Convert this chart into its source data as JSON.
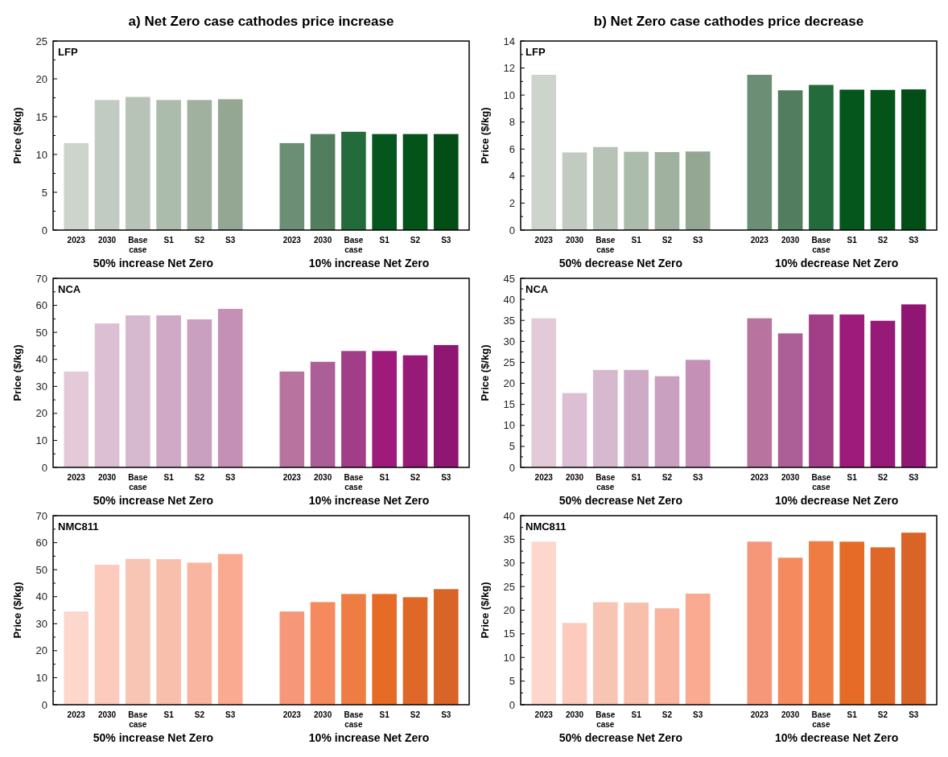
{
  "chart_data": [
    {
      "type": "bar",
      "title": "a) Net Zero case cathodes price increase",
      "subtitle": "LFP",
      "ylabel": "Price ($/kg)",
      "categories": [
        "2023",
        "2030",
        "Base case",
        "S1",
        "S2",
        "S3",
        null,
        "2023",
        "2030",
        "Base case",
        "S1",
        "S2",
        "S3"
      ],
      "values": [
        11.5,
        17.2,
        17.6,
        17.2,
        17.2,
        17.3,
        null,
        11.5,
        12.7,
        13.0,
        12.7,
        12.7,
        12.7
      ],
      "colors": [
        "#ccd4cc",
        "#c2cbc2",
        "#b7c3b7",
        "#acbcac",
        "#a0b1a0",
        "#93a793",
        null,
        "#6b8e74",
        "#527d5e",
        "#246b3c",
        "#04561d",
        "#045419",
        "#034e17"
      ],
      "ylim": [
        0,
        25
      ],
      "yticks": [
        0,
        {
          "value": 2.5,
          "label": null
        },
        5,
        {
          "value": 7.5,
          "label": null
        },
        10,
        {
          "value": 12.5,
          "label": null
        },
        15,
        {
          "value": 17.5,
          "label": null
        },
        20,
        {
          "value": 22.5,
          "label": null
        },
        25
      ],
      "annotations": [
        "50% increase Net Zero",
        "10% increase Net Zero"
      ]
    },
    {
      "type": "bar",
      "title": "b) Net Zero case cathodes price decrease",
      "subtitle": "LFP",
      "ylabel": "Price ($/kg)",
      "categories": [
        "2023",
        "2030",
        "Base case",
        "S1",
        "S2",
        "S3",
        null,
        "2023",
        "2030",
        "Base case",
        "S1",
        "S2",
        "S3"
      ],
      "values": [
        11.5,
        5.75,
        6.15,
        5.8,
        5.78,
        5.82,
        null,
        11.5,
        10.35,
        10.75,
        10.4,
        10.38,
        10.42
      ],
      "colors": [
        "#ccd4cc",
        "#c2cbc2",
        "#b7c3b7",
        "#acbcac",
        "#a0b1a0",
        "#93a793",
        null,
        "#6b8e74",
        "#527d5e",
        "#246b3c",
        "#04561d",
        "#045419",
        "#034e17"
      ],
      "ylim": [
        0,
        14
      ],
      "yticks": [
        0,
        {
          "value": 1,
          "label": null
        },
        2,
        {
          "value": 3,
          "label": null
        },
        4,
        {
          "value": 5,
          "label": null
        },
        6,
        {
          "value": 7,
          "label": null
        },
        8,
        {
          "value": 9,
          "label": null
        },
        10,
        {
          "value": 11,
          "label": null
        },
        12,
        {
          "value": 13,
          "label": null
        },
        14
      ],
      "annotations": [
        "50% decrease Net Zero",
        "10% decrease Net Zero"
      ]
    },
    {
      "type": "bar",
      "subtitle": "NCA",
      "ylabel": "Price ($/kg)",
      "categories": [
        "2023",
        "2030",
        "Base case",
        "S1",
        "S2",
        "S3",
        null,
        "2023",
        "2030",
        "Base case",
        "S1",
        "S2",
        "S3"
      ],
      "values": [
        35.5,
        53.3,
        56.3,
        56.3,
        54.8,
        58.7,
        null,
        35.5,
        39.1,
        43.1,
        43.1,
        41.5,
        45.3
      ],
      "colors": [
        "#e4cad9",
        "#dcbfd3",
        "#d6b8cf",
        "#cfaac6",
        "#c9a0bf",
        "#c590b5",
        null,
        "#b8739f",
        "#ac5f97",
        "#a23e87",
        "#9e1a7b",
        "#971a78",
        "#901674"
      ],
      "ylim": [
        0,
        70
      ],
      "yticks": [
        0,
        {
          "value": 5,
          "label": null
        },
        10,
        {
          "value": 15,
          "label": null
        },
        20,
        {
          "value": 25,
          "label": null
        },
        30,
        {
          "value": 35,
          "label": null
        },
        40,
        {
          "value": 45,
          "label": null
        },
        50,
        {
          "value": 55,
          "label": null
        },
        60,
        {
          "value": 65,
          "label": null
        },
        70
      ],
      "annotations": [
        "50% increase Net Zero",
        "10% increase Net Zero"
      ]
    },
    {
      "type": "bar",
      "subtitle": "NCA",
      "ylabel": "Price ($/kg)",
      "categories": [
        "2023",
        "2030",
        "Base case",
        "S1",
        "S2",
        "S3",
        null,
        "2023",
        "2030",
        "Base case",
        "S1",
        "S2",
        "S3"
      ],
      "values": [
        35.5,
        17.7,
        23.2,
        23.2,
        21.7,
        25.6,
        null,
        35.5,
        31.9,
        36.4,
        36.4,
        34.9,
        38.8
      ],
      "colors": [
        "#e4cad9",
        "#dcbfd3",
        "#d6b8cf",
        "#cfaac6",
        "#c9a0bf",
        "#c590b5",
        null,
        "#b8739f",
        "#ac5f97",
        "#a23e87",
        "#9e1a7b",
        "#971a78",
        "#901674"
      ],
      "ylim": [
        0,
        45
      ],
      "yticks": [
        0,
        {
          "value": 2.5,
          "label": null
        },
        5,
        {
          "value": 7.5,
          "label": null
        },
        10,
        {
          "value": 12.5,
          "label": null
        },
        15,
        {
          "value": 17.5,
          "label": null
        },
        20,
        {
          "value": 22.5,
          "label": null
        },
        25,
        {
          "value": 27.5,
          "label": null
        },
        30,
        {
          "value": 32.5,
          "label": null
        },
        35,
        {
          "value": 37.5,
          "label": null
        },
        40,
        {
          "value": 42.5,
          "label": null
        },
        45
      ],
      "annotations": [
        "50% decrease Net Zero",
        "10% decrease Net Zero"
      ]
    },
    {
      "type": "bar",
      "subtitle": "NMC811",
      "ylabel": "Price ($/kg)",
      "categories": [
        "2023",
        "2030",
        "Base case",
        "S1",
        "S2",
        "S3",
        null,
        "2023",
        "2030",
        "Base case",
        "S1",
        "S2",
        "S3"
      ],
      "values": [
        34.5,
        51.8,
        54.0,
        53.9,
        52.6,
        55.8,
        null,
        34.5,
        38.0,
        41.0,
        41.0,
        39.8,
        42.8
      ],
      "colors": [
        "#fdd6cc",
        "#fccbbd",
        "#f8c4b3",
        "#f9bfad",
        "#f9b5a0",
        "#f9aa90",
        null,
        "#f7977a",
        "#f68a5f",
        "#ef7c43",
        "#e66b26",
        "#df6728",
        "#d96428"
      ],
      "ylim": [
        0,
        70
      ],
      "yticks": [
        0,
        {
          "value": 5,
          "label": null
        },
        10,
        {
          "value": 15,
          "label": null
        },
        20,
        {
          "value": 25,
          "label": null
        },
        30,
        {
          "value": 35,
          "label": null
        },
        40,
        {
          "value": 45,
          "label": null
        },
        50,
        {
          "value": 55,
          "label": null
        },
        60,
        {
          "value": 65,
          "label": null
        },
        70
      ],
      "annotations": [
        "50% increase Net Zero",
        "10% increase Net Zero"
      ]
    },
    {
      "type": "bar",
      "subtitle": "NMC811",
      "ylabel": "Price ($/kg)",
      "categories": [
        "2023",
        "2030",
        "Base case",
        "S1",
        "S2",
        "S3",
        null,
        "2023",
        "2030",
        "Base case",
        "S1",
        "S2",
        "S3"
      ],
      "values": [
        34.5,
        17.3,
        21.7,
        21.6,
        20.4,
        23.5,
        null,
        34.5,
        31.1,
        34.6,
        34.5,
        33.3,
        36.4
      ],
      "colors": [
        "#fdd6cc",
        "#fccbbd",
        "#f8c4b3",
        "#f9bfad",
        "#f9b5a0",
        "#f9aa90",
        null,
        "#f7977a",
        "#f68a5f",
        "#ef7c43",
        "#e66b26",
        "#df6728",
        "#d96428"
      ],
      "ylim": [
        0,
        40
      ],
      "yticks": [
        0,
        {
          "value": 2.5,
          "label": null
        },
        5,
        {
          "value": 7.5,
          "label": null
        },
        10,
        {
          "value": 12.5,
          "label": null
        },
        15,
        {
          "value": 17.5,
          "label": null
        },
        20,
        {
          "value": 22.5,
          "label": null
        },
        25,
        {
          "value": 27.5,
          "label": null
        },
        30,
        {
          "value": 32.5,
          "label": null
        },
        35,
        {
          "value": 37.5,
          "label": null
        },
        40
      ],
      "annotations": [
        "50% decrease Net Zero",
        "10% decrease Net Zero"
      ]
    }
  ]
}
